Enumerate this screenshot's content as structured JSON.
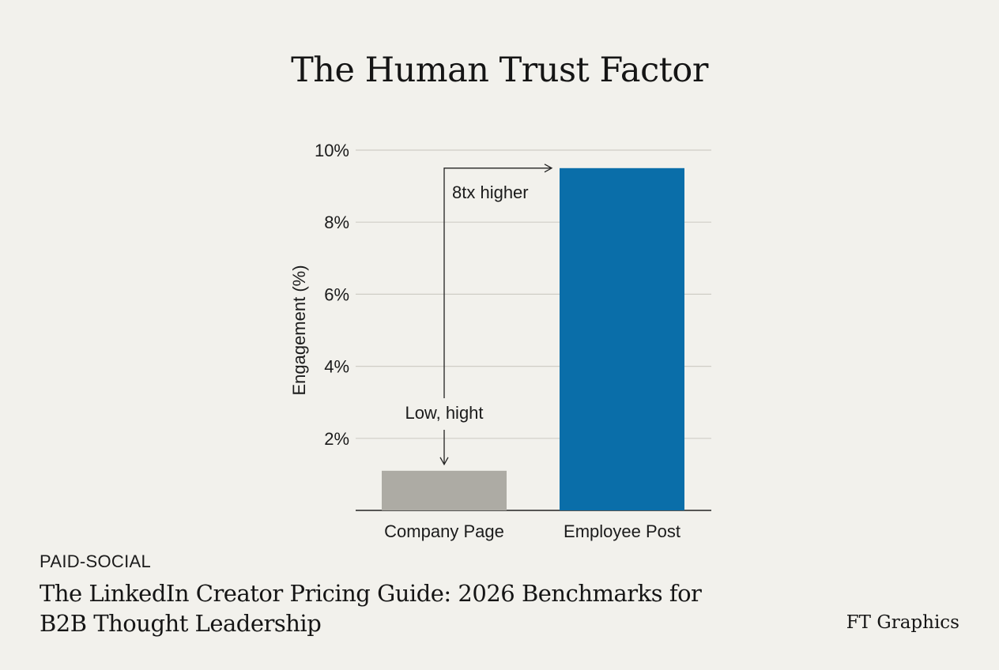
{
  "chart_data": {
    "type": "bar",
    "title": "The Human Trust Factor",
    "ylabel": "Engagement (%)",
    "xlabel": "",
    "categories": [
      "Company Page",
      "Employee Post"
    ],
    "values": [
      1.1,
      9.5
    ],
    "ylim": [
      0,
      10
    ],
    "yticks": [
      2,
      4,
      6,
      8,
      10
    ],
    "ytick_labels": [
      "2%",
      "4%",
      "6%",
      "8%",
      "10%"
    ],
    "bar_colors": [
      "#adaba4",
      "#0a6ea9"
    ],
    "grid": true,
    "annotations": {
      "low": "Low, hight",
      "ratio": "8tx higher"
    }
  },
  "footer": {
    "tag": "PAID-SOCIAL",
    "headline": "The LinkedIn Creator Pricing Guide: 2026 Benchmarks for B2B Thought Leadership",
    "source": "FT Graphics"
  }
}
